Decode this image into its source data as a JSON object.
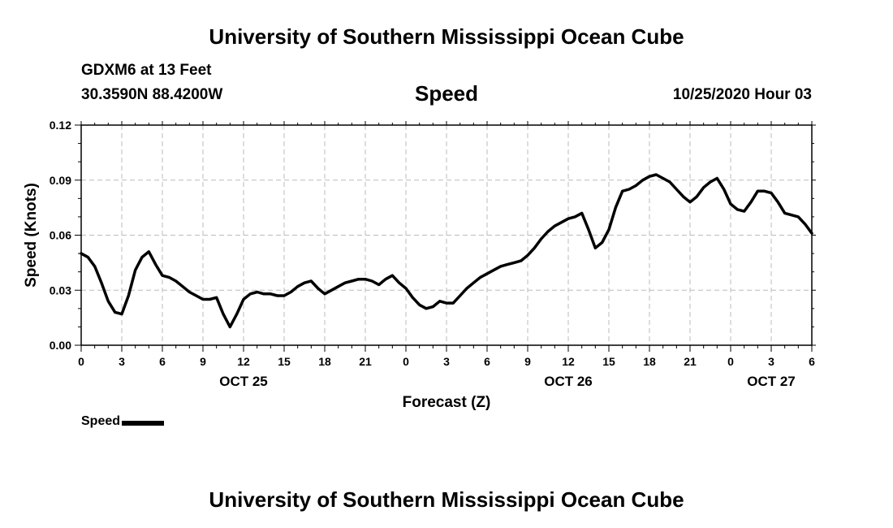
{
  "header": {
    "top_title": "University of Southern Mississippi Ocean Cube",
    "station": "GDXM6 at 13 Feet",
    "coords": "30.3590N 88.4200W",
    "plot_title": "Speed",
    "datetime": "10/25/2020 Hour 03"
  },
  "footer": {
    "bottom_title": "University of Southern Mississippi Ocean Cube"
  },
  "legend": {
    "label": "Speed"
  },
  "chart_data": {
    "type": "line",
    "title": "Speed",
    "xlabel": "Forecast (Z)",
    "ylabel": "Speed (Knots)",
    "xlim": [
      0,
      54
    ],
    "ylim": [
      0,
      0.12
    ],
    "yticks": [
      "0.00",
      "0.03",
      "0.06",
      "0.09",
      "0.12"
    ],
    "xticks": [
      {
        "x": 0,
        "label": "0"
      },
      {
        "x": 3,
        "label": "3"
      },
      {
        "x": 6,
        "label": "6"
      },
      {
        "x": 9,
        "label": "9"
      },
      {
        "x": 12,
        "label": "12"
      },
      {
        "x": 15,
        "label": "15"
      },
      {
        "x": 18,
        "label": "18"
      },
      {
        "x": 21,
        "label": "21"
      },
      {
        "x": 24,
        "label": "0"
      },
      {
        "x": 27,
        "label": "3"
      },
      {
        "x": 30,
        "label": "6"
      },
      {
        "x": 33,
        "label": "9"
      },
      {
        "x": 36,
        "label": "12"
      },
      {
        "x": 39,
        "label": "15"
      },
      {
        "x": 42,
        "label": "18"
      },
      {
        "x": 45,
        "label": "21"
      },
      {
        "x": 48,
        "label": "0"
      },
      {
        "x": 51,
        "label": "3"
      },
      {
        "x": 54,
        "label": "6"
      }
    ],
    "date_labels": [
      {
        "x": 12,
        "label": "OCT 25"
      },
      {
        "x": 36,
        "label": "OCT 26"
      },
      {
        "x": 51,
        "label": "OCT 27"
      }
    ],
    "grid": true,
    "series": [
      {
        "name": "Speed",
        "color": "#000000",
        "x": [
          0,
          0.5,
          1,
          1.5,
          2,
          2.5,
          3,
          3.5,
          4,
          4.5,
          5,
          5.5,
          6,
          6.5,
          7,
          7.5,
          8,
          8.5,
          9,
          9.5,
          10,
          10.5,
          11,
          11.5,
          12,
          12.5,
          13,
          13.5,
          14,
          14.5,
          15,
          15.5,
          16,
          16.5,
          17,
          17.5,
          18,
          18.5,
          19,
          19.5,
          20,
          20.5,
          21,
          21.5,
          22,
          22.5,
          23,
          23.5,
          24,
          24.5,
          25,
          25.5,
          26,
          26.5,
          27,
          27.5,
          28,
          28.5,
          29,
          29.5,
          30,
          30.5,
          31,
          31.5,
          32,
          32.5,
          33,
          33.5,
          34,
          34.5,
          35,
          35.5,
          36,
          36.5,
          37,
          37.5,
          38,
          38.5,
          39,
          39.5,
          40,
          40.5,
          41,
          41.5,
          42,
          42.5,
          43,
          43.5,
          44,
          44.5,
          45,
          45.5,
          46,
          46.5,
          47,
          47.5,
          48,
          48.5,
          49,
          49.5,
          50,
          50.5,
          51,
          51.5,
          52,
          52.5,
          53,
          53.5,
          54
        ],
        "values": [
          0.05,
          0.048,
          0.043,
          0.034,
          0.024,
          0.018,
          0.017,
          0.027,
          0.041,
          0.048,
          0.051,
          0.044,
          0.038,
          0.037,
          0.035,
          0.032,
          0.029,
          0.027,
          0.025,
          0.025,
          0.026,
          0.017,
          0.01,
          0.017,
          0.025,
          0.028,
          0.029,
          0.028,
          0.028,
          0.027,
          0.027,
          0.029,
          0.032,
          0.034,
          0.035,
          0.031,
          0.028,
          0.03,
          0.032,
          0.034,
          0.035,
          0.036,
          0.036,
          0.035,
          0.033,
          0.036,
          0.038,
          0.034,
          0.031,
          0.026,
          0.022,
          0.02,
          0.021,
          0.024,
          0.023,
          0.023,
          0.027,
          0.031,
          0.034,
          0.037,
          0.039,
          0.041,
          0.043,
          0.044,
          0.045,
          0.046,
          0.049,
          0.053,
          0.058,
          0.062,
          0.065,
          0.067,
          0.069,
          0.07,
          0.072,
          0.063,
          0.053,
          0.056,
          0.063,
          0.075,
          0.084,
          0.085,
          0.087,
          0.09,
          0.092,
          0.093,
          0.091,
          0.089,
          0.085,
          0.081,
          0.078,
          0.081,
          0.086,
          0.089,
          0.091,
          0.085,
          0.077,
          0.074,
          0.073,
          0.078,
          0.084,
          0.084,
          0.083,
          0.078,
          0.072,
          0.071,
          0.07,
          0.066,
          0.061
        ]
      }
    ]
  }
}
